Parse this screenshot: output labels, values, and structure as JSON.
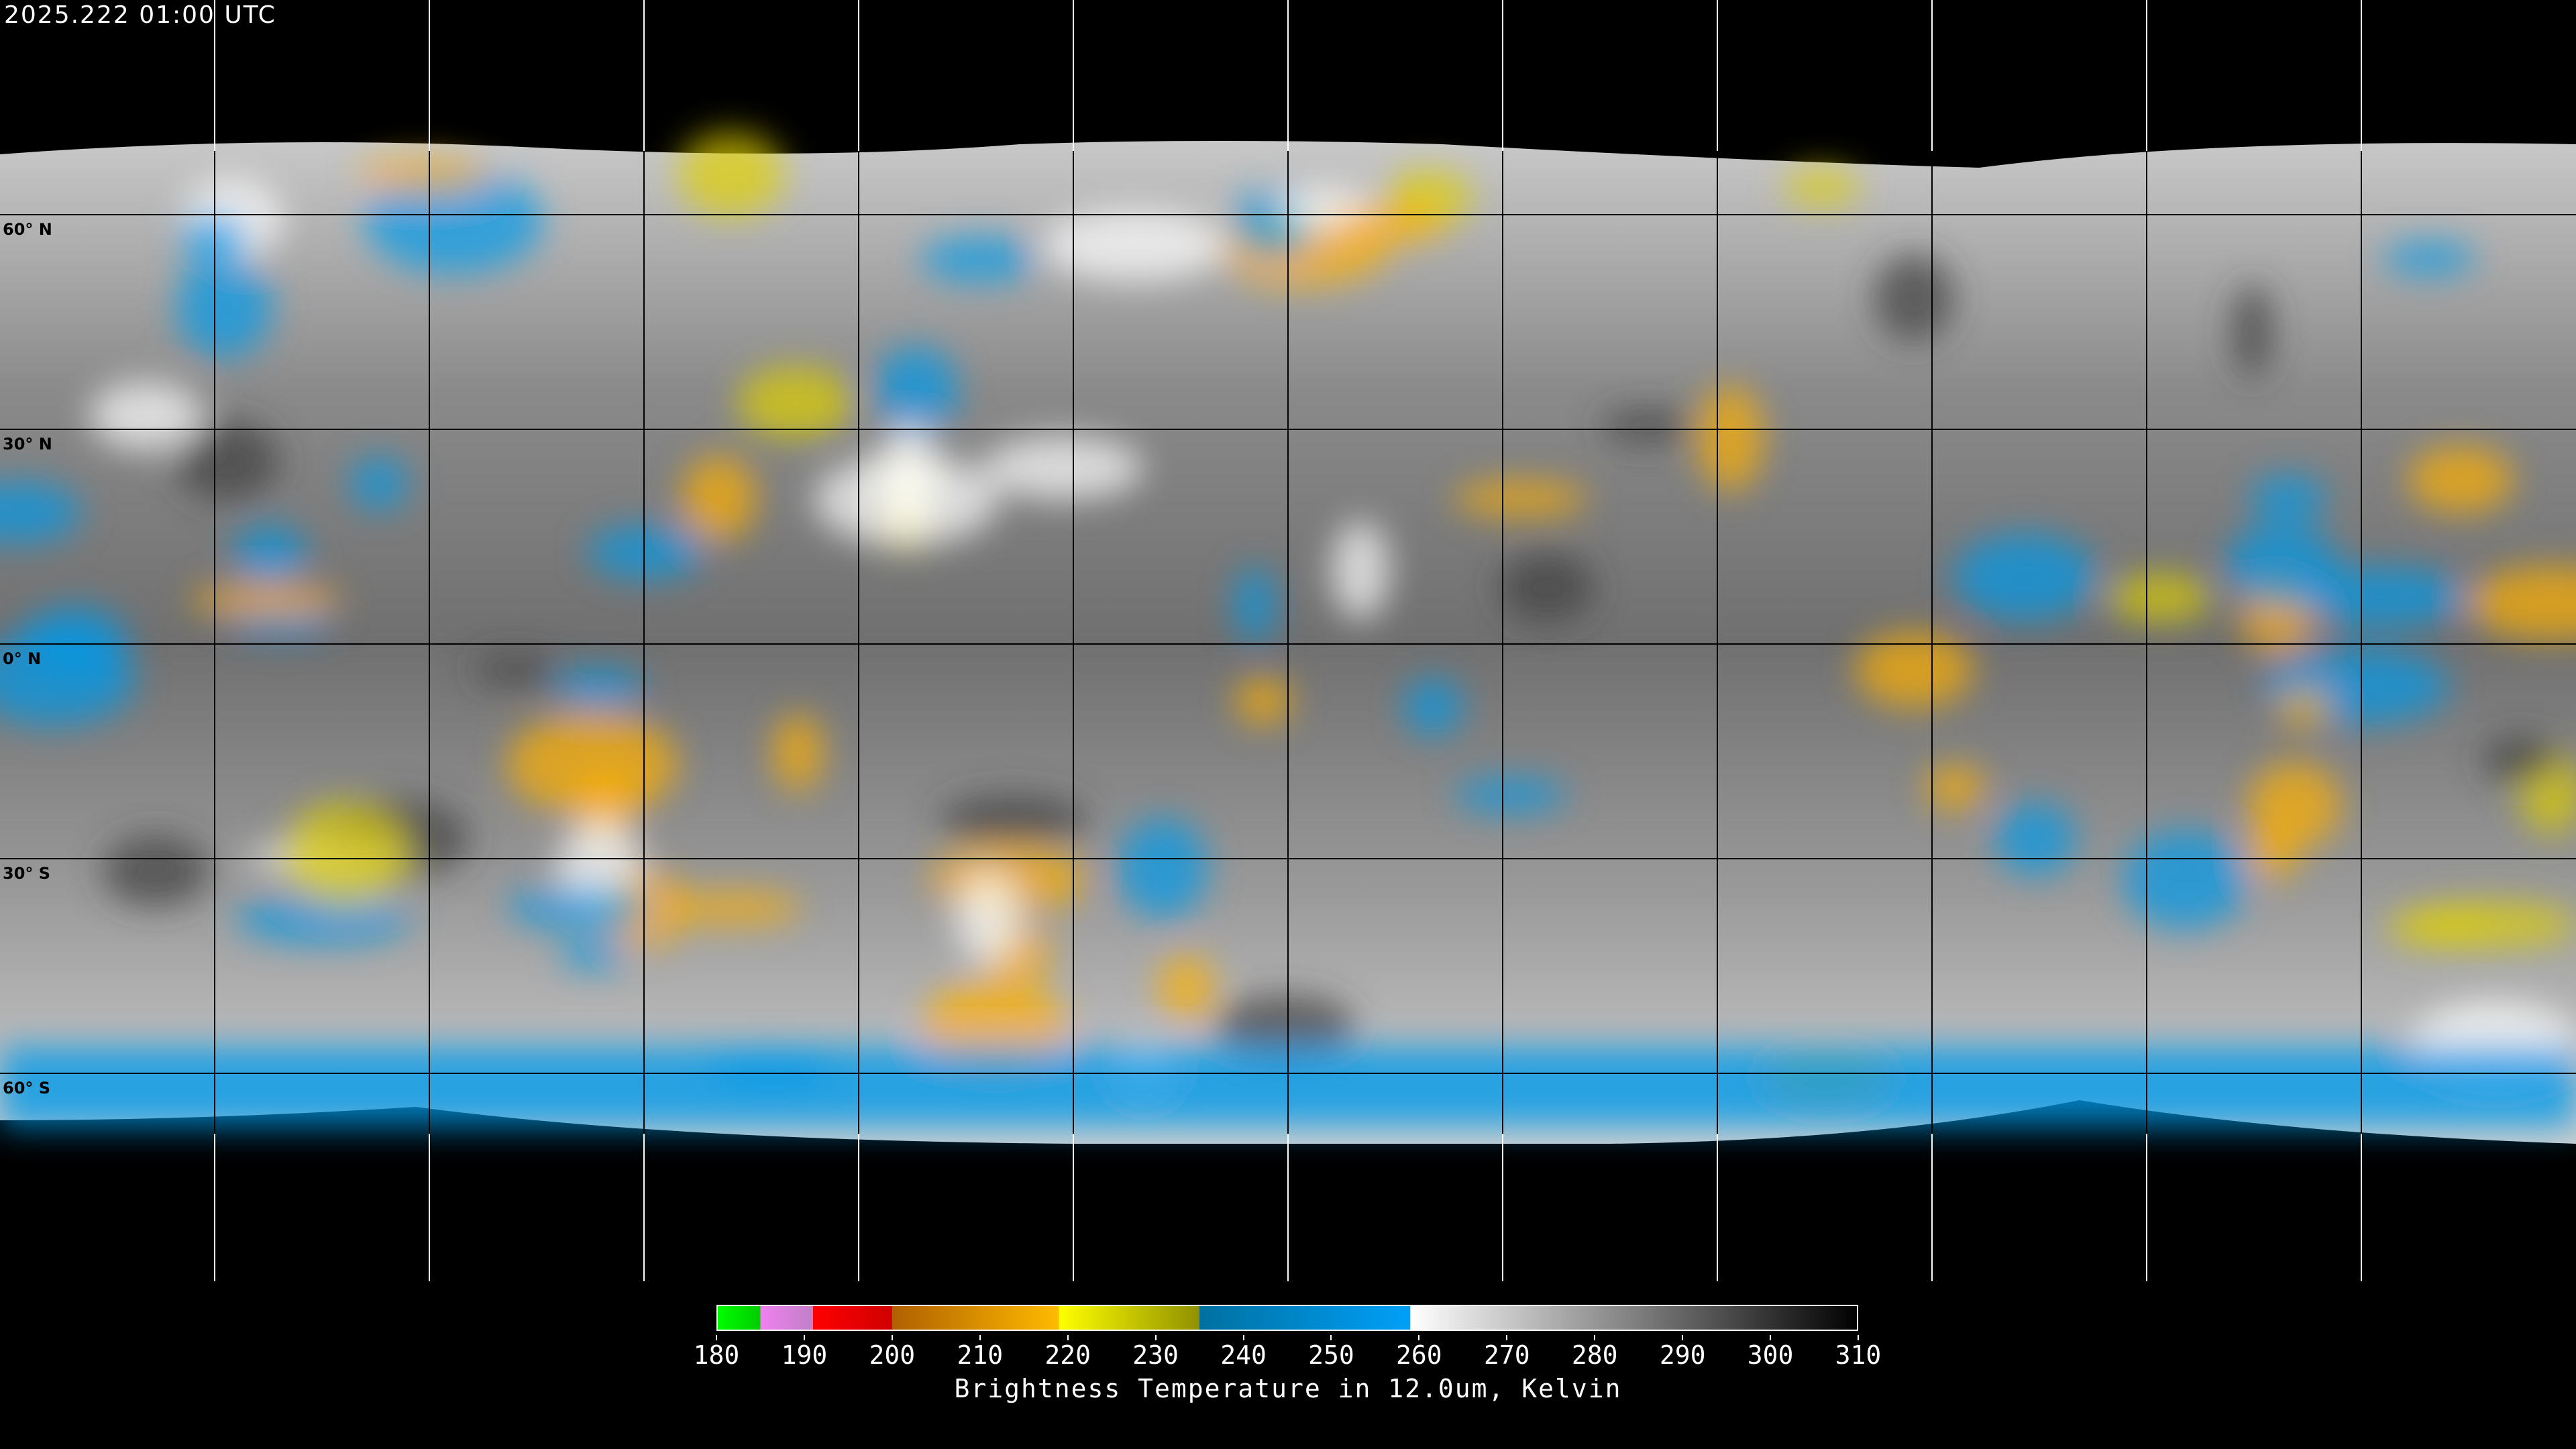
{
  "header": {
    "timestamp": "2025.222 01:00 UTC"
  },
  "map": {
    "projection": "equirectangular",
    "latitude_labels": [
      "60° N",
      "30° N",
      "0° N",
      "30° S",
      "60° S"
    ],
    "latitudes": [
      60,
      30,
      0,
      -30,
      -60
    ],
    "longitude_gridlines_deg": 30,
    "background_color": "#000000",
    "coastline_color": "#000000"
  },
  "colorbar": {
    "title": "Brightness Temperature in 12.0um, Kelvin",
    "range": [
      180,
      310
    ],
    "ticks": [
      "180",
      "190",
      "200",
      "210",
      "220",
      "230",
      "240",
      "250",
      "260",
      "270",
      "280",
      "290",
      "300",
      "310"
    ],
    "segments": [
      {
        "from": 180,
        "to": 185,
        "start": "#00ff00",
        "end": "#00cc00"
      },
      {
        "from": 185,
        "to": 191,
        "start": "#f080f0",
        "end": "#c080c8"
      },
      {
        "from": 191,
        "to": 200,
        "start": "#ff0000",
        "end": "#d00000"
      },
      {
        "from": 200,
        "to": 219,
        "start": "#b06000",
        "end": "#ffbb00"
      },
      {
        "from": 219,
        "to": 235,
        "start": "#ffff00",
        "end": "#909000"
      },
      {
        "from": 235,
        "to": 259,
        "start": "#0070a0",
        "end": "#00a0f8"
      },
      {
        "from": 259,
        "to": 310,
        "start": "#ffffff",
        "end": "#000000"
      }
    ]
  }
}
